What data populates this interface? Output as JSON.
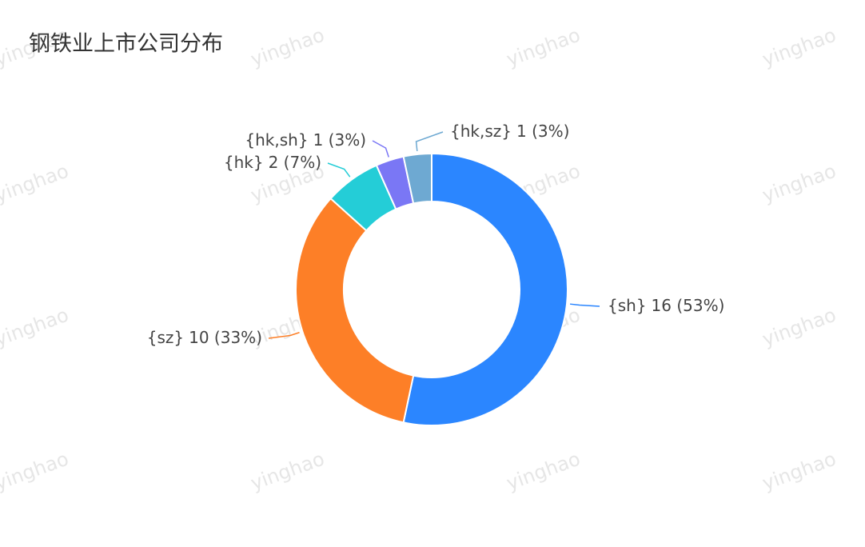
{
  "chart_data": {
    "type": "donut",
    "title": "钢铁业上市公司分布",
    "watermark": "yinghao",
    "categories": [
      "{sh}",
      "{sz}",
      "{hk}",
      "{hk,sh}",
      "{hk,sz}"
    ],
    "values": [
      16,
      10,
      2,
      1,
      1
    ],
    "value_labels": [
      "16 (53%)",
      "10 (33%)",
      "2 (7%)",
      "1 (3%)",
      "1 (3%)"
    ],
    "colors": [
      "#2b86ff",
      "#fd7f27",
      "#24cdd7",
      "#7a77f5",
      "#6ea9d2"
    ]
  }
}
